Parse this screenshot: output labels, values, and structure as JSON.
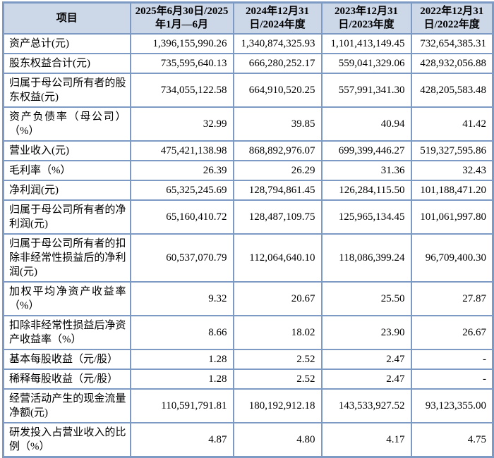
{
  "colors": {
    "border": "#7d9ac4",
    "header_bg": "#ccd7e8",
    "text": "#000000"
  },
  "table": {
    "columns": [
      "项目",
      "2025年6月30日/2025年1月—6月",
      "2024年12月31日/2024年度",
      "2023年12月31日/2023年度",
      "2022年12月31日/2022年度"
    ],
    "rows": [
      {
        "label": "资产总计(元)",
        "values": [
          "1,396,155,990.26",
          "1,340,874,325.93",
          "1,101,413,149.45",
          "732,654,385.31"
        ]
      },
      {
        "label": "股东权益合计(元)",
        "values": [
          "735,595,640.13",
          "666,280,252.17",
          "559,041,329.06",
          "428,932,056.88"
        ]
      },
      {
        "label": "归属于母公司所有者的股东权益(元)",
        "values": [
          "734,055,122.58",
          "664,910,520.25",
          "557,991,341.30",
          "428,205,583.48"
        ]
      },
      {
        "label": "资产负债率（母公司）（%）",
        "values": [
          "32.99",
          "39.85",
          "40.94",
          "41.42"
        ]
      },
      {
        "label": "营业收入(元)",
        "values": [
          "475,421,138.98",
          "868,892,976.07",
          "699,399,446.27",
          "519,327,595.86"
        ]
      },
      {
        "label": "毛利率（%）",
        "values": [
          "26.39",
          "26.29",
          "31.36",
          "32.43"
        ]
      },
      {
        "label": "净利润(元)",
        "values": [
          "65,325,245.69",
          "128,794,861.45",
          "126,284,115.50",
          "101,188,471.20"
        ]
      },
      {
        "label": "归属于母公司所有者的净利润(元)",
        "values": [
          "65,160,410.72",
          "128,487,109.75",
          "125,965,134.45",
          "101,061,997.80"
        ]
      },
      {
        "label": "归属于母公司所有者的扣除非经常性损益后的净利润(元)",
        "values": [
          "60,537,070.79",
          "112,064,640.10",
          "118,086,399.24",
          "96,709,400.30"
        ]
      },
      {
        "label": "加权平均净资产收益率（%）",
        "values": [
          "9.32",
          "20.67",
          "25.50",
          "27.87"
        ]
      },
      {
        "label": "扣除非经常性损益后净资产收益率（%）",
        "values": [
          "8.66",
          "18.02",
          "23.90",
          "26.67"
        ]
      },
      {
        "label": "基本每股收益（元/股）",
        "values": [
          "1.28",
          "2.52",
          "2.47",
          "-"
        ]
      },
      {
        "label": "稀释每股收益（元/股）",
        "values": [
          "1.28",
          "2.52",
          "2.47",
          "-"
        ]
      },
      {
        "label": "经营活动产生的现金流量净额(元)",
        "values": [
          "110,591,791.81",
          "180,192,912.18",
          "143,533,927.52",
          "93,123,355.00"
        ]
      },
      {
        "label": "研发投入占营业收入的比例（%）",
        "values": [
          "4.87",
          "4.80",
          "4.17",
          "4.75"
        ]
      }
    ]
  }
}
